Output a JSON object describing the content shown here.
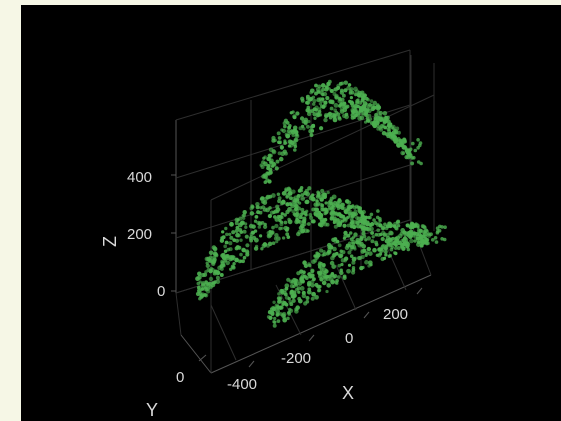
{
  "chart_data": {
    "type": "scatter3d",
    "background": "#000000",
    "marker_color": "#4caf50",
    "grid": true,
    "axes": {
      "x": {
        "label": "X",
        "ticks": [
          -400,
          -200,
          0,
          200
        ],
        "tick_labels": [
          "-400",
          "-200",
          "0",
          "200"
        ]
      },
      "y": {
        "label": "Y",
        "ticks": [
          0
        ],
        "tick_labels": [
          "0"
        ]
      },
      "z": {
        "label": "Z",
        "ticks": [
          0,
          200,
          400
        ],
        "tick_labels": [
          "0",
          "200",
          "400"
        ]
      }
    },
    "series": [
      {
        "points": 1500,
        "shape": "three stacked elongated curved point-cloud bands"
      }
    ]
  }
}
